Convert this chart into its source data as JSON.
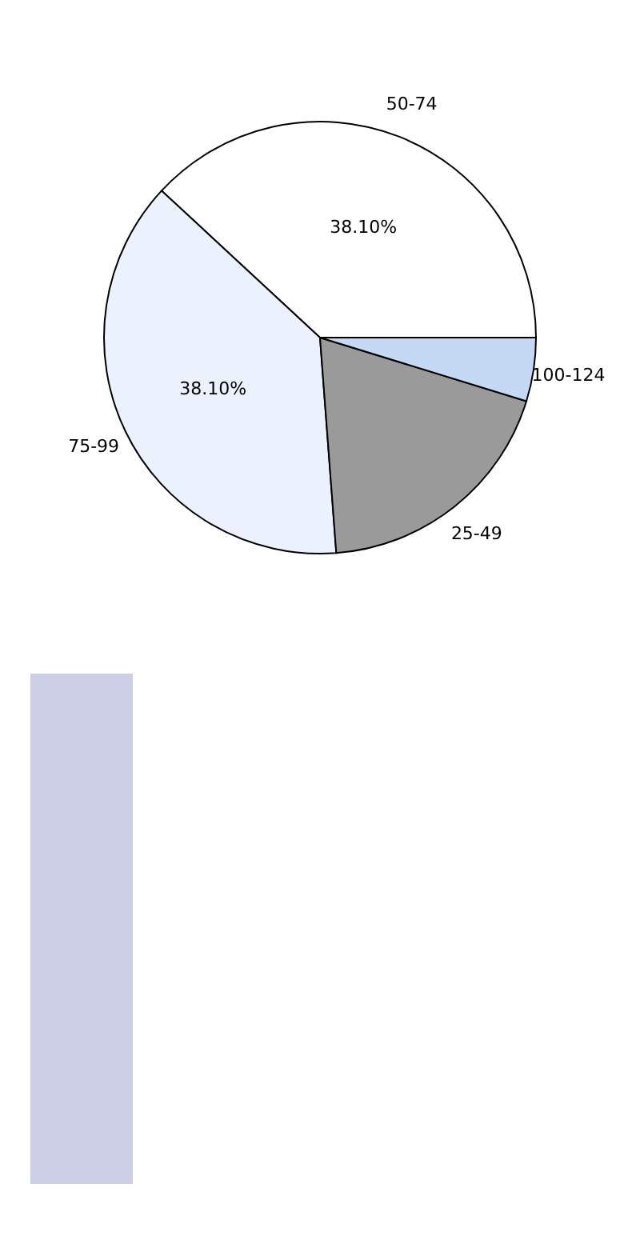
{
  "chart_data": {
    "type": "pie",
    "categories": [
      "50-74",
      "75-99",
      "25-49",
      "100-124"
    ],
    "values": [
      38.1,
      38.1,
      19.04,
      4.76
    ],
    "colors": [
      "#ffffff",
      "#ecf2fd",
      "#9a9a9a",
      "#c5d9f5"
    ],
    "value_labels": [
      "38.10%",
      "38.10%",
      null,
      null
    ]
  }
}
